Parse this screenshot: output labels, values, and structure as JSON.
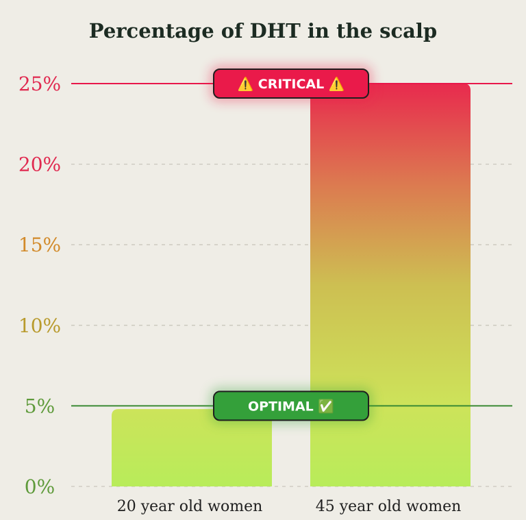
{
  "chart_data": {
    "type": "bar",
    "title": "Percentage of DHT in the scalp",
    "categories": [
      "20 year old women",
      "45 year old women"
    ],
    "values": [
      4.8,
      25
    ],
    "ylim": [
      0,
      25
    ],
    "yticks": [
      "0%",
      "5%",
      "10%",
      "15%",
      "20%",
      "25%"
    ],
    "ytick_values": [
      0,
      5,
      10,
      15,
      20,
      25
    ],
    "ytick_colors": [
      "#5e9a3a",
      "#5e9a3a",
      "#b89a2c",
      "#d28a2a",
      "#e0294f",
      "#e0294f"
    ],
    "grid": true,
    "reference_lines": [
      {
        "value": 25,
        "label": "⚠️ CRITICAL ⚠️",
        "color": "#e8174a",
        "fill": "#ea1a4a"
      },
      {
        "value": 5,
        "label": "OPTIMAL ✅",
        "color": "#3a8a34",
        "fill": "#34a03a"
      }
    ],
    "bar_gradient": {
      "top": "#e82a4e",
      "mid": "#cdbf52",
      "bottom": "#b8ec5a"
    }
  }
}
